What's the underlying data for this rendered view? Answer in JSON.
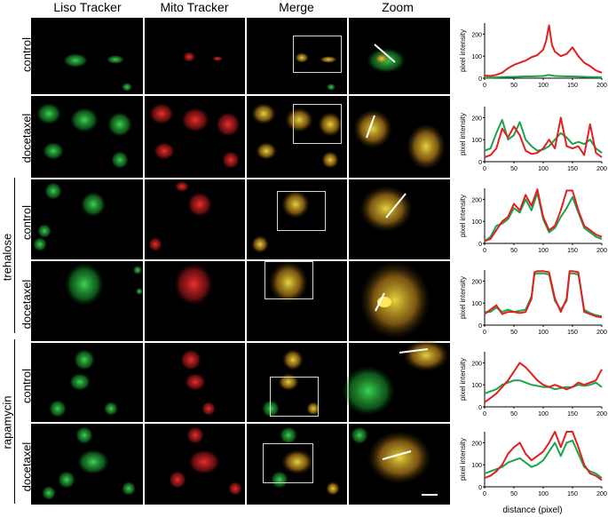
{
  "columns": [
    "Liso Tracker",
    "Mito Tracker",
    "Merge",
    "Zoom"
  ],
  "row_labels": [
    "control",
    "docetaxel",
    "control",
    "docetaxel",
    "control",
    "docetaxel"
  ],
  "group_labels": {
    "trehalose": "trehalose",
    "rapamycin": "rapamycin"
  },
  "x_axis_title": "distance (pixel)",
  "colors": {
    "red": "#e41e1e",
    "green": "#1aa54a",
    "background": "#000000"
  },
  "chart_data": [
    {
      "type": "line",
      "ylabel": "pixel intensity",
      "xlim": [
        0,
        200
      ],
      "ylim": [
        0,
        250
      ],
      "yticks": [
        0,
        100,
        200
      ],
      "xticks": [
        0,
        50,
        100,
        150,
        200
      ],
      "x": [
        0,
        10,
        20,
        30,
        40,
        50,
        60,
        70,
        80,
        90,
        100,
        105,
        110,
        115,
        120,
        130,
        140,
        150,
        160,
        170,
        180,
        190,
        200
      ],
      "series": [
        {
          "values": [
            12,
            10,
            15,
            25,
            45,
            60,
            70,
            80,
            95,
            105,
            130,
            170,
            240,
            150,
            120,
            100,
            110,
            140,
            100,
            70,
            55,
            35,
            25
          ]
        },
        {
          "values": [
            3,
            3,
            4,
            5,
            6,
            6,
            7,
            8,
            8,
            9,
            10,
            12,
            15,
            12,
            10,
            9,
            8,
            8,
            7,
            6,
            5,
            5,
            4
          ]
        }
      ]
    },
    {
      "type": "line",
      "ylabel": "pixel intensity",
      "xlim": [
        0,
        200
      ],
      "ylim": [
        0,
        250
      ],
      "yticks": [
        0,
        100,
        200
      ],
      "xticks": [
        0,
        50,
        100,
        150,
        200
      ],
      "x": [
        0,
        10,
        20,
        30,
        40,
        50,
        60,
        70,
        80,
        90,
        100,
        110,
        120,
        130,
        140,
        150,
        160,
        170,
        180,
        190,
        200
      ],
      "series": [
        {
          "values": [
            20,
            30,
            60,
            150,
            110,
            160,
            120,
            50,
            35,
            40,
            60,
            100,
            60,
            200,
            70,
            60,
            70,
            30,
            170,
            40,
            20
          ]
        },
        {
          "values": [
            50,
            60,
            130,
            190,
            100,
            120,
            180,
            100,
            70,
            50,
            55,
            70,
            100,
            130,
            110,
            80,
            90,
            80,
            100,
            60,
            40
          ]
        }
      ]
    },
    {
      "type": "line",
      "ylabel": "pixel intensity",
      "xlim": [
        0,
        200
      ],
      "ylim": [
        0,
        250
      ],
      "yticks": [
        0,
        100,
        200
      ],
      "xticks": [
        0,
        50,
        100,
        150,
        200
      ],
      "x": [
        0,
        10,
        20,
        30,
        40,
        50,
        60,
        70,
        80,
        90,
        100,
        110,
        120,
        130,
        140,
        150,
        160,
        170,
        180,
        190,
        200
      ],
      "series": [
        {
          "values": [
            10,
            20,
            60,
            100,
            120,
            180,
            150,
            220,
            170,
            245,
            120,
            60,
            80,
            150,
            240,
            240,
            150,
            80,
            60,
            40,
            30
          ]
        },
        {
          "values": [
            10,
            30,
            80,
            90,
            110,
            160,
            140,
            200,
            150,
            230,
            110,
            50,
            70,
            120,
            160,
            210,
            140,
            70,
            50,
            30,
            20
          ]
        }
      ]
    },
    {
      "type": "line",
      "ylabel": "pixel intensity",
      "xlim": [
        0,
        200
      ],
      "ylim": [
        0,
        250
      ],
      "yticks": [
        0,
        100,
        200
      ],
      "xticks": [
        0,
        50,
        100,
        150,
        200
      ],
      "x": [
        0,
        10,
        20,
        30,
        40,
        50,
        60,
        70,
        80,
        85,
        90,
        100,
        110,
        120,
        130,
        140,
        145,
        150,
        160,
        170,
        180,
        190,
        200
      ],
      "series": [
        {
          "values": [
            50,
            70,
            90,
            50,
            60,
            60,
            55,
            60,
            120,
            240,
            245,
            245,
            240,
            120,
            60,
            120,
            245,
            245,
            240,
            60,
            50,
            40,
            35
          ]
        },
        {
          "values": [
            60,
            60,
            80,
            60,
            70,
            60,
            65,
            70,
            130,
            230,
            235,
            235,
            230,
            110,
            70,
            110,
            235,
            235,
            230,
            70,
            55,
            45,
            40
          ]
        }
      ]
    },
    {
      "type": "line",
      "ylabel": "pixel intensity",
      "xlim": [
        0,
        200
      ],
      "ylim": [
        0,
        250
      ],
      "yticks": [
        0,
        100,
        200
      ],
      "xticks": [
        0,
        50,
        100,
        150,
        200
      ],
      "x": [
        0,
        10,
        20,
        30,
        40,
        50,
        60,
        70,
        80,
        90,
        100,
        110,
        120,
        130,
        140,
        150,
        160,
        170,
        180,
        190,
        200
      ],
      "series": [
        {
          "values": [
            20,
            40,
            60,
            90,
            120,
            160,
            200,
            180,
            150,
            120,
            100,
            90,
            100,
            90,
            80,
            90,
            110,
            100,
            110,
            120,
            170
          ]
        },
        {
          "values": [
            60,
            70,
            80,
            100,
            110,
            120,
            120,
            110,
            100,
            95,
            90,
            90,
            80,
            85,
            90,
            90,
            100,
            95,
            100,
            110,
            90
          ]
        }
      ]
    },
    {
      "type": "line",
      "ylabel": "pixel intensity",
      "xlim": [
        0,
        200
      ],
      "ylim": [
        0,
        250
      ],
      "yticks": [
        0,
        100,
        200
      ],
      "xticks": [
        0,
        50,
        100,
        150,
        200
      ],
      "x": [
        0,
        10,
        20,
        30,
        40,
        50,
        60,
        70,
        80,
        90,
        100,
        110,
        120,
        130,
        140,
        150,
        160,
        170,
        180,
        190,
        200
      ],
      "series": [
        {
          "values": [
            40,
            50,
            70,
            100,
            150,
            180,
            200,
            150,
            120,
            140,
            160,
            200,
            250,
            180,
            250,
            250,
            180,
            100,
            60,
            50,
            30
          ]
        },
        {
          "values": [
            60,
            70,
            80,
            90,
            110,
            120,
            130,
            110,
            90,
            100,
            120,
            160,
            200,
            140,
            200,
            210,
            150,
            90,
            70,
            60,
            40
          ]
        }
      ]
    }
  ]
}
